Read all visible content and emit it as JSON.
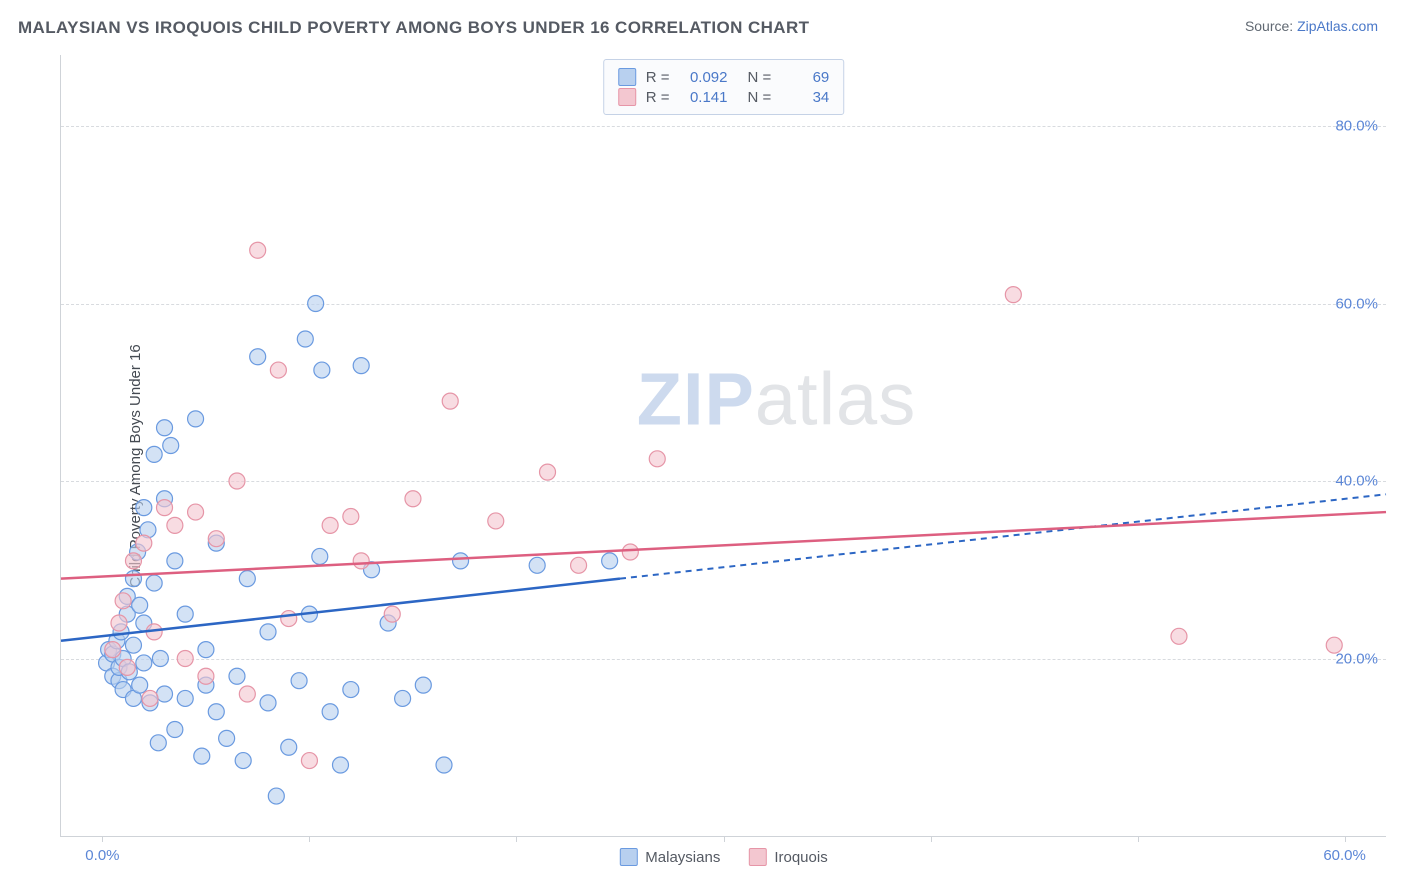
{
  "header": {
    "title": "MALAYSIAN VS IROQUOIS CHILD POVERTY AMONG BOYS UNDER 16 CORRELATION CHART",
    "source_prefix": "Source: ",
    "source_site": "ZipAtlas.com"
  },
  "chart": {
    "type": "scatter",
    "ylabel": "Child Poverty Among Boys Under 16",
    "background_color": "#ffffff",
    "grid_color": "#d8dbdf",
    "axis_color": "#cfd3d8",
    "tick_label_color": "#5b86d6",
    "xlim": [
      -2,
      62
    ],
    "ylim": [
      0,
      88
    ],
    "y_ticks": [
      20,
      40,
      60,
      80
    ],
    "y_tick_labels": [
      "20.0%",
      "40.0%",
      "60.0%",
      "80.0%"
    ],
    "x_ticks": [
      0,
      10,
      20,
      30,
      40,
      50,
      60
    ],
    "x_tick_labels": {
      "0": "0.0%",
      "60": "60.0%"
    },
    "marker_radius": 8,
    "marker_opacity": 0.62,
    "marker_stroke_width": 1.2,
    "series": [
      {
        "name": "Malaysians",
        "fill": "#b8d0ef",
        "stroke": "#6a9ae0",
        "line_color": "#2c66c4",
        "R": "0.092",
        "N": "69",
        "regression": {
          "x1": -2,
          "y1": 22,
          "x2_solid": 25,
          "y2_solid": 29,
          "x2_dash": 62,
          "y2_dash": 38.5
        },
        "points": [
          [
            0.2,
            19.5
          ],
          [
            0.3,
            21
          ],
          [
            0.5,
            18
          ],
          [
            0.5,
            20.5
          ],
          [
            0.7,
            22
          ],
          [
            0.8,
            17.5
          ],
          [
            0.8,
            19
          ],
          [
            0.9,
            23
          ],
          [
            1,
            16.5
          ],
          [
            1,
            20
          ],
          [
            1.2,
            25
          ],
          [
            1.2,
            27
          ],
          [
            1.3,
            18.5
          ],
          [
            1.5,
            15.5
          ],
          [
            1.5,
            21.5
          ],
          [
            1.5,
            29
          ],
          [
            1.7,
            32
          ],
          [
            1.8,
            17
          ],
          [
            1.8,
            26
          ],
          [
            2,
            19.5
          ],
          [
            2,
            24
          ],
          [
            2,
            37
          ],
          [
            2.2,
            34.5
          ],
          [
            2.3,
            15
          ],
          [
            2.5,
            28.5
          ],
          [
            2.5,
            43
          ],
          [
            2.7,
            10.5
          ],
          [
            2.8,
            20
          ],
          [
            3,
            16
          ],
          [
            3,
            38
          ],
          [
            3,
            46
          ],
          [
            3.3,
            44
          ],
          [
            3.5,
            12
          ],
          [
            3.5,
            31
          ],
          [
            4,
            15.5
          ],
          [
            4,
            25
          ],
          [
            4.5,
            47
          ],
          [
            4.8,
            9
          ],
          [
            5,
            17
          ],
          [
            5,
            21
          ],
          [
            5.5,
            14
          ],
          [
            5.5,
            33
          ],
          [
            6,
            11
          ],
          [
            6.5,
            18
          ],
          [
            6.8,
            8.5
          ],
          [
            7,
            29
          ],
          [
            7.5,
            54
          ],
          [
            8,
            23
          ],
          [
            8,
            15
          ],
          [
            8.4,
            4.5
          ],
          [
            9,
            10
          ],
          [
            9.5,
            17.5
          ],
          [
            9.8,
            56
          ],
          [
            10,
            25
          ],
          [
            10.3,
            60
          ],
          [
            10.5,
            31.5
          ],
          [
            10.6,
            52.5
          ],
          [
            11,
            14
          ],
          [
            11.5,
            8
          ],
          [
            12,
            16.5
          ],
          [
            12.5,
            53
          ],
          [
            13,
            30
          ],
          [
            13.8,
            24
          ],
          [
            14.5,
            15.5
          ],
          [
            15.5,
            17
          ],
          [
            16.5,
            8
          ],
          [
            17.3,
            31
          ],
          [
            21,
            30.5
          ],
          [
            24.5,
            31
          ]
        ]
      },
      {
        "name": "Iroquois",
        "fill": "#f3c7d0",
        "stroke": "#e695a7",
        "line_color": "#dd5f80",
        "R": "0.141",
        "N": "34",
        "regression": {
          "x1": -2,
          "y1": 29,
          "x2_solid": 62,
          "y2_solid": 36.5,
          "x2_dash": 62,
          "y2_dash": 36.5
        },
        "points": [
          [
            0.5,
            21
          ],
          [
            0.8,
            24
          ],
          [
            1,
            26.5
          ],
          [
            1.2,
            19
          ],
          [
            1.5,
            31
          ],
          [
            2,
            33
          ],
          [
            2.3,
            15.5
          ],
          [
            2.5,
            23
          ],
          [
            3,
            37
          ],
          [
            3.5,
            35
          ],
          [
            4,
            20
          ],
          [
            4.5,
            36.5
          ],
          [
            5,
            18
          ],
          [
            5.5,
            33.5
          ],
          [
            6.5,
            40
          ],
          [
            7,
            16
          ],
          [
            7.5,
            66
          ],
          [
            8.5,
            52.5
          ],
          [
            9,
            24.5
          ],
          [
            10,
            8.5
          ],
          [
            11,
            35
          ],
          [
            12,
            36
          ],
          [
            12.5,
            31
          ],
          [
            14,
            25
          ],
          [
            15,
            38
          ],
          [
            16.8,
            49
          ],
          [
            19,
            35.5
          ],
          [
            21.5,
            41
          ],
          [
            23,
            30.5
          ],
          [
            25.5,
            32
          ],
          [
            26.8,
            42.5
          ],
          [
            44,
            61
          ],
          [
            52,
            22.5
          ],
          [
            59.5,
            21.5
          ]
        ]
      }
    ],
    "stats_legend": {
      "r_label": "R =",
      "n_label": "N ="
    },
    "bottom_legend": {
      "series1": "Malaysians",
      "series2": "Iroquois"
    },
    "watermark": {
      "part1": "ZIP",
      "part2": "atlas"
    }
  }
}
